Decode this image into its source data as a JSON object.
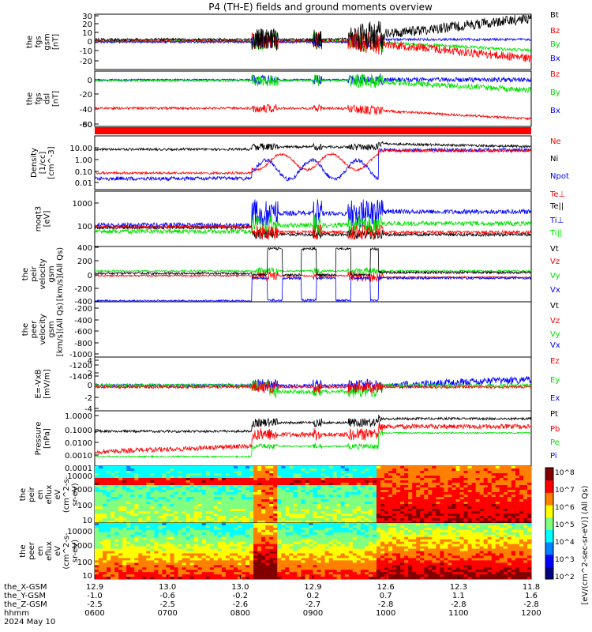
{
  "title": "P4 (TH-E) fields and ground moments overview",
  "colors": {
    "black": "#000000",
    "red": "#ff0000",
    "green": "#00e000",
    "blue": "#0000ff"
  },
  "panels": [
    {
      "id": "fgs-gsm",
      "ylabel": [
        "the",
        "fgs",
        "gsm",
        "[nT]"
      ],
      "ticks": [
        "30",
        "20",
        "10",
        "0",
        "-10",
        "-20"
      ],
      "legend": [
        {
          "name": "Bt",
          "color": "black"
        },
        {
          "name": "Bz",
          "color": "red"
        },
        {
          "name": "By",
          "color": "green"
        },
        {
          "name": "Bx",
          "color": "blue"
        }
      ]
    },
    {
      "id": "fgs-dsl",
      "ylabel": [
        "the",
        "fgs",
        "dsl",
        "[nT]"
      ],
      "ticks": [
        "0",
        "-20",
        "-40",
        "-60",
        "-80"
      ],
      "legend": [
        {
          "name": "Bz",
          "color": "red"
        },
        {
          "name": "By",
          "color": "green"
        },
        {
          "name": "Bx",
          "color": "blue"
        }
      ]
    },
    {
      "id": "density",
      "ylabel": [
        "Density",
        "[1/cc]",
        "[cm^-3]"
      ],
      "ticks": [
        "10.00",
        "1.00",
        "0.10",
        "0.01"
      ],
      "legend": [
        {
          "name": "Ne",
          "color": "red"
        },
        {
          "name": "Ni",
          "color": "black"
        },
        {
          "name": "Npot",
          "color": "blue"
        }
      ]
    },
    {
      "id": "temperature",
      "ylabel": [
        "moqt3",
        "[eV]"
      ],
      "ticks": [
        "1000",
        "100"
      ],
      "legend": [
        {
          "name": "Te⊥",
          "color": "red"
        },
        {
          "name": "Te||",
          "color": "black"
        },
        {
          "name": "Ti⊥",
          "color": "blue"
        },
        {
          "name": "Ti||",
          "color": "green"
        }
      ]
    },
    {
      "id": "peir-velocity",
      "ylabel": [
        "the",
        "peir",
        "velocity",
        "gsm",
        "[km/s](All Qs)"
      ],
      "ticks": [
        "400",
        "200",
        "0",
        "-200",
        "-400"
      ],
      "legend": [
        {
          "name": "Vt",
          "color": "black"
        },
        {
          "name": "Vz",
          "color": "red"
        },
        {
          "name": "Vy",
          "color": "green"
        },
        {
          "name": "Vx",
          "color": "blue"
        }
      ]
    },
    {
      "id": "peer-velocity",
      "ylabel": [
        "the",
        "peer",
        "velocity",
        "gsm",
        "[km/s](All Qs)"
      ],
      "ticks": [
        "-200",
        "-400",
        "-600",
        "-800",
        "-1000",
        "-1200",
        "-1400"
      ],
      "legend": [
        {
          "name": "Vt",
          "color": "black"
        },
        {
          "name": "Vz",
          "color": "red"
        },
        {
          "name": "Vy",
          "color": "green"
        },
        {
          "name": "Vx",
          "color": "blue"
        }
      ]
    },
    {
      "id": "efield",
      "ylabel": [
        "E=-VxB",
        "[mV/m]"
      ],
      "ticks": [
        "4",
        "2",
        "0",
        "-2",
        "-4"
      ],
      "legend": [
        {
          "name": "Ez",
          "color": "red"
        },
        {
          "name": "Ey",
          "color": "green"
        },
        {
          "name": "Ex",
          "color": "blue"
        }
      ]
    },
    {
      "id": "pressure",
      "ylabel": [
        "Pressure",
        "[nPa]"
      ],
      "ticks": [
        "1.0000",
        "0.1000",
        "0.0100",
        "0.0010",
        "0.0001"
      ],
      "legend": [
        {
          "name": "Pt",
          "color": "black"
        },
        {
          "name": "Pb",
          "color": "red"
        },
        {
          "name": "Pe",
          "color": "green"
        },
        {
          "name": "Pi",
          "color": "blue"
        }
      ]
    },
    {
      "id": "peir-eflux",
      "ylabel": [
        "the",
        "peir",
        "en",
        "eflux",
        "eV",
        "(cm^2-s-",
        "sr-eV)"
      ],
      "ticks": [
        "10000",
        "1000",
        "100",
        "10"
      ]
    },
    {
      "id": "peer-eflux",
      "ylabel": [
        "the",
        "peer",
        "en",
        "eflux",
        "eV",
        "(cm^2-s-",
        "sr-eV)"
      ],
      "ticks": [
        "10000",
        "1000",
        "100",
        "10"
      ]
    }
  ],
  "colorbar": {
    "label": "[eV/(cm^2-sec-sr-eV)] (All Qs)",
    "ticks": [
      "10^8",
      "10^7",
      "10^6",
      "10^5",
      "10^4",
      "10^3",
      "10^2"
    ]
  },
  "xaxis": {
    "row_labels": [
      "the_X-GSM",
      "the_Y-GSM",
      "the_Z-GSM",
      "hhmm",
      "2024 May 10"
    ],
    "columns": [
      [
        "12.9",
        "-1.0",
        "-2.5",
        "0600"
      ],
      [
        "13.0",
        "-0.6",
        "-2.5",
        "0700"
      ],
      [
        "13.0",
        "-0.2",
        "-2.6",
        "0800"
      ],
      [
        "12.9",
        "0.2",
        "-2.7",
        "0900"
      ],
      [
        "12.6",
        "0.7",
        "-2.8",
        "1000"
      ],
      [
        "12.3",
        "1.1",
        "-2.8",
        "1100"
      ],
      [
        "11.8",
        "1.6",
        "-2.8",
        "1200"
      ]
    ]
  },
  "chart_data": {
    "type": "line",
    "title": "P4 (TH-E) fields and ground moments overview",
    "x_range": [
      "0600",
      "1200"
    ],
    "series_approx": [
      {
        "panel": "fgs-gsm",
        "name": "Bt",
        "values": [
          4,
          5,
          6,
          5,
          12,
          8,
          14,
          18,
          22,
          25,
          28
        ]
      },
      {
        "panel": "fgs-gsm",
        "name": "Bz",
        "values": [
          1,
          0,
          1,
          0,
          3,
          -2,
          -8,
          -12,
          -15,
          -16,
          -18
        ]
      },
      {
        "panel": "fgs-gsm",
        "name": "By",
        "values": [
          0,
          0,
          0,
          0,
          -2,
          -3,
          -6,
          -8,
          -9,
          -8,
          -10
        ]
      },
      {
        "panel": "fgs-gsm",
        "name": "Bx",
        "values": [
          0,
          0,
          1,
          0,
          -3,
          0,
          2,
          -1,
          -3,
          -2,
          -3
        ]
      },
      {
        "panel": "fgs-dsl",
        "name": "Bz",
        "values": [
          -55,
          -55,
          -55,
          -54,
          -55,
          -57,
          -60,
          -66,
          -74,
          -77,
          -80
        ]
      },
      {
        "panel": "fgs-dsl",
        "name": "By",
        "values": [
          -1,
          -1,
          -1,
          -1,
          -3,
          -3,
          -5,
          -7,
          -9,
          -10,
          -10
        ]
      },
      {
        "panel": "density",
        "name": "Ni",
        "values": [
          4,
          4,
          4,
          4,
          3,
          5,
          5,
          6,
          4,
          3,
          3
        ]
      },
      {
        "panel": "density",
        "name": "Ne",
        "values": [
          0.05,
          0.06,
          0.05,
          0.06,
          0.1,
          2,
          3,
          3,
          3,
          2,
          2
        ]
      },
      {
        "panel": "density",
        "name": "Npot",
        "values": [
          0.02,
          0.02,
          0.03,
          0.02,
          0.02,
          0.5,
          1,
          2,
          2,
          2,
          2
        ]
      },
      {
        "panel": "peir-velocity",
        "name": "Vx",
        "values": [
          -400,
          -400,
          -400,
          -400,
          -100,
          -50,
          -20,
          -30,
          -20,
          -30,
          -20
        ]
      },
      {
        "panel": "peir-velocity",
        "name": "Vy",
        "values": [
          60,
          60,
          60,
          60,
          50,
          40,
          30,
          20,
          10,
          0,
          -10
        ]
      },
      {
        "panel": "pressure",
        "name": "Pt",
        "values": [
          0.05,
          0.06,
          0.06,
          0.07,
          0.2,
          0.6,
          0.8,
          0.5,
          0.4,
          0.5,
          0.6
        ]
      },
      {
        "panel": "pressure",
        "name": "Pb",
        "values": [
          0.002,
          0.003,
          0.005,
          0.006,
          0.02,
          0.1,
          0.2,
          0.2,
          0.2,
          0.2,
          0.3
        ]
      },
      {
        "panel": "pressure",
        "name": "Pe",
        "values": [
          0.0005,
          0.0005,
          0.0008,
          0.001,
          0.002,
          0.01,
          0.02,
          0.03,
          0.03,
          0.03,
          0.03
        ]
      }
    ]
  }
}
